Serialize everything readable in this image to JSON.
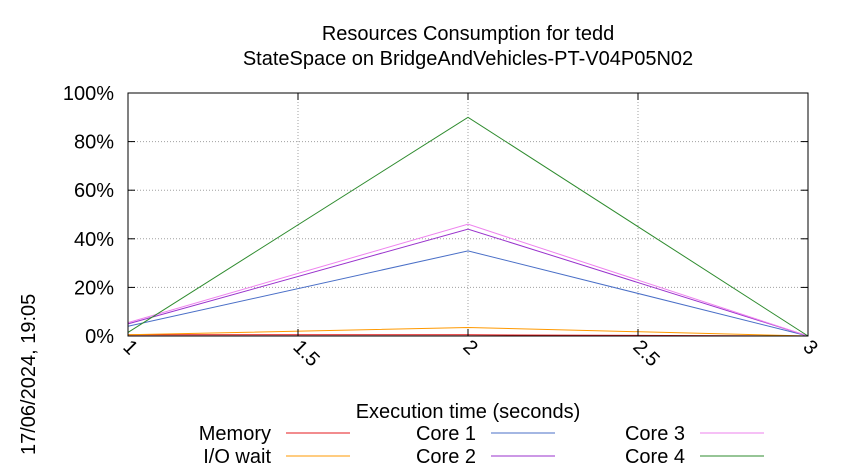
{
  "timestamp": "17/06/2024, 19:05",
  "chart_data": {
    "type": "line",
    "title": "Resources Consumption for tedd",
    "subtitle": "StateSpace on BridgeAndVehicles-PT-V04P05N02",
    "xlabel": "Execution time (seconds)",
    "ylabel": "",
    "xlim": [
      1,
      3
    ],
    "ylim": [
      0,
      100
    ],
    "x_ticks": [
      1,
      1.5,
      2,
      2.5,
      3
    ],
    "x_tick_labels": [
      "1",
      "1.5",
      "2",
      "2.5",
      "3"
    ],
    "y_ticks": [
      0,
      20,
      40,
      60,
      80,
      100
    ],
    "y_tick_labels": [
      "0%",
      "20%",
      "40%",
      "60%",
      "80%",
      "100%"
    ],
    "grid": true,
    "legend_position": "bottom",
    "x": [
      1,
      2,
      3
    ],
    "series": [
      {
        "name": "Memory",
        "color": "#e41a1c",
        "values": [
          0.5,
          0.5,
          0
        ]
      },
      {
        "name": "I/O wait",
        "color": "#ff9900",
        "values": [
          0.5,
          3.5,
          0
        ]
      },
      {
        "name": "Core 1",
        "color": "#4a6fc7",
        "values": [
          4,
          35,
          0
        ]
      },
      {
        "name": "Core 2",
        "color": "#9932cc",
        "values": [
          5,
          44,
          0
        ]
      },
      {
        "name": "Core 3",
        "color": "#ee82ee",
        "values": [
          5.5,
          46,
          0
        ]
      },
      {
        "name": "Core 4",
        "color": "#2e8b2e",
        "values": [
          1.5,
          90,
          0
        ]
      }
    ]
  }
}
